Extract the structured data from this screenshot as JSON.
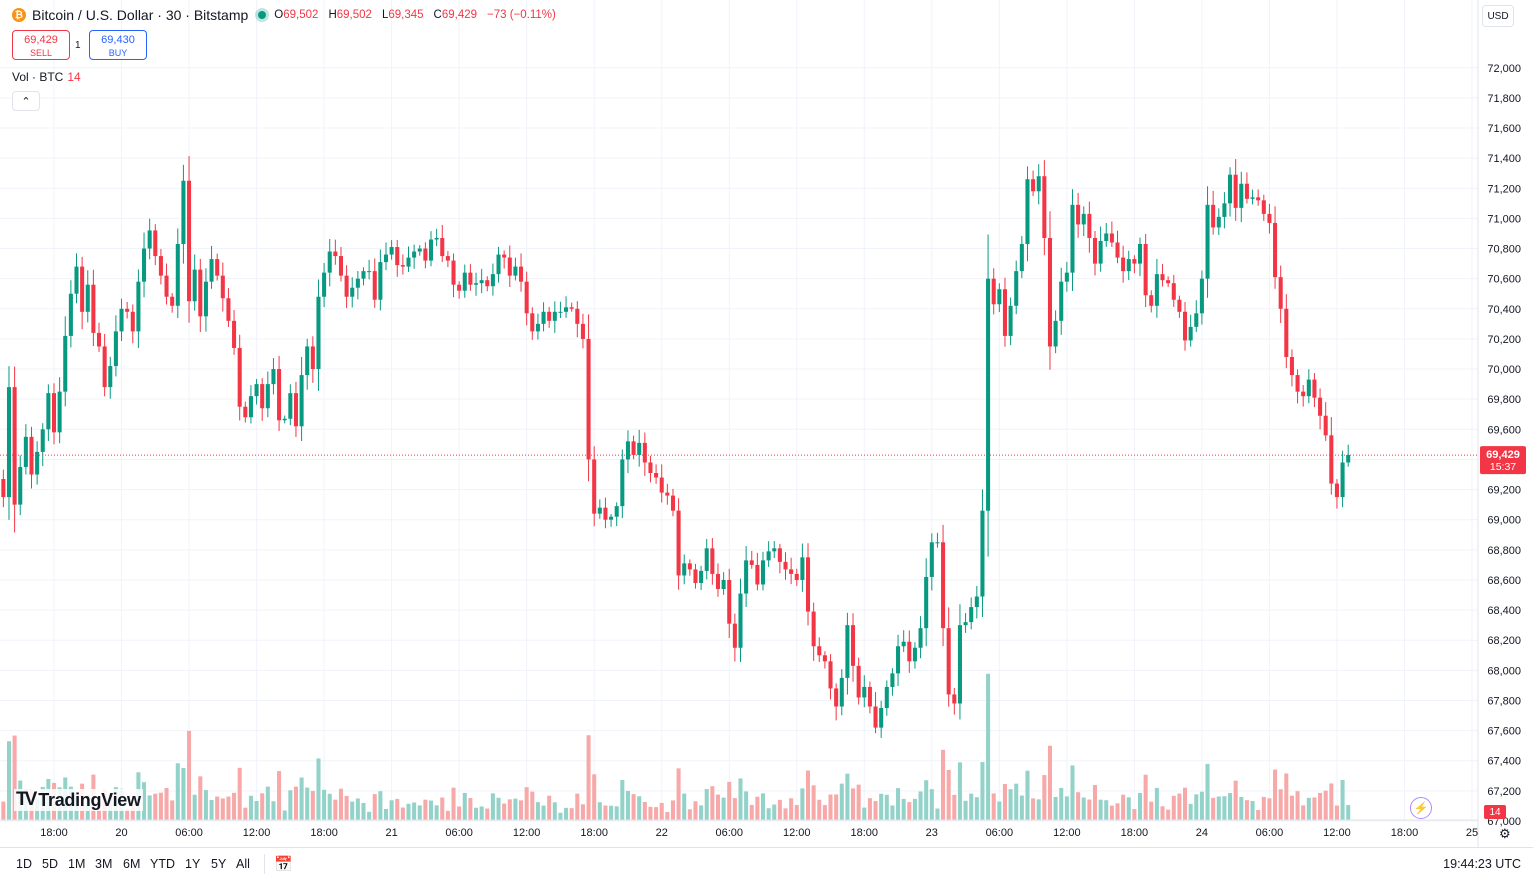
{
  "header": {
    "symbol_title": "Bitcoin / U.S. Dollar · 30 · Bitstamp",
    "o_label": "O",
    "o_value": "69,502",
    "h_label": "H",
    "h_value": "69,502",
    "l_label": "L",
    "l_value": "69,345",
    "c_label": "C",
    "c_value": "69,429",
    "change": "−73 (−0.11%)"
  },
  "trade": {
    "sell_price": "69,429",
    "sell_label": "SELL",
    "spread": "1",
    "buy_price": "69,430",
    "buy_label": "BUY"
  },
  "volume_legend": {
    "label": "Vol · BTC",
    "value": "14"
  },
  "collapse_glyph": "⌃",
  "currency": "USD",
  "logo_text": "TradingView",
  "logo_mark": "TV",
  "price_label": {
    "price": "69,429",
    "countdown": "15:37"
  },
  "volume_tag": "14",
  "timeframes": [
    "1D",
    "5D",
    "1M",
    "3M",
    "6M",
    "YTD",
    "1Y",
    "5Y",
    "All"
  ],
  "clock": "19:44:23 UTC",
  "colors": {
    "up": "#089981",
    "down": "#f23645",
    "up_vol": "#93d2c9",
    "down_vol": "#f7a9a9",
    "grid": "#f0f3fa"
  },
  "chart_data": {
    "type": "candlestick",
    "interval_minutes": 30,
    "y_ticks": [
      "67,000",
      "67,200",
      "67,400",
      "67,600",
      "67,800",
      "68,000",
      "68,200",
      "68,400",
      "68,600",
      "68,800",
      "69,000",
      "69,200",
      "69,400",
      "69,600",
      "69,800",
      "70,000",
      "70,200",
      "70,400",
      "70,600",
      "70,800",
      "71,000",
      "71,200",
      "71,400",
      "71,600",
      "71,800",
      "72,000"
    ],
    "ylim": [
      66980,
      72120
    ],
    "x_ticks": [
      "18:00",
      "20",
      "06:00",
      "12:00",
      "18:00",
      "21",
      "06:00",
      "12:00",
      "18:00",
      "22",
      "06:00",
      "12:00",
      "18:00",
      "23",
      "06:00",
      "12:00",
      "18:00",
      "24",
      "06:00",
      "12:00",
      "18:00",
      "25"
    ],
    "x_tick_times": [
      "2024-05-19 18:00",
      "2024-05-20 00:00",
      "2024-05-20 06:00",
      "2024-05-20 12:00",
      "2024-05-20 18:00",
      "2024-05-21 00:00",
      "2024-05-21 06:00",
      "2024-05-21 12:00",
      "2024-05-21 18:00",
      "2024-05-22 00:00",
      "2024-05-22 06:00",
      "2024-05-22 12:00",
      "2024-05-22 18:00",
      "2024-05-23 00:00",
      "2024-05-23 06:00",
      "2024-05-23 12:00",
      "2024-05-23 18:00",
      "2024-05-24 00:00",
      "2024-05-24 06:00",
      "2024-05-24 12:00",
      "2024-05-24 18:00",
      "2024-05-25 00:00"
    ],
    "first_bar_time": "2024-05-19 13:30",
    "last_price": 69429,
    "closes": [
      69150,
      69880,
      69100,
      69350,
      69550,
      69300,
      69450,
      69600,
      69840,
      69580,
      69850,
      70220,
      70500,
      70680,
      70380,
      70560,
      70240,
      70150,
      69880,
      70020,
      70250,
      70400,
      70380,
      70250,
      70580,
      70800,
      70920,
      70750,
      70620,
      70480,
      70420,
      70830,
      71250,
      70450,
      70660,
      70350,
      70580,
      70730,
      70620,
      70470,
      70320,
      70140,
      69750,
      69680,
      69820,
      69900,
      69740,
      69900,
      70000,
      69660,
      69670,
      69840,
      69620,
      69960,
      70150,
      70000,
      70480,
      70640,
      70780,
      70750,
      70620,
      70480,
      70540,
      70600,
      70650,
      70650,
      70460,
      70710,
      70760,
      70810,
      70690,
      70680,
      70740,
      70780,
      70800,
      70720,
      70860,
      70870,
      70750,
      70720,
      70560,
      70520,
      70640,
      70560,
      70570,
      70590,
      70550,
      70630,
      70760,
      70740,
      70620,
      70680,
      70580,
      70370,
      70250,
      70300,
      70380,
      70320,
      70380,
      70380,
      70410,
      70400,
      70300,
      70200,
      69400,
      69040,
      69080,
      69000,
      69020,
      69090,
      69400,
      69520,
      69430,
      69510,
      69380,
      69310,
      69280,
      69180,
      69160,
      69060,
      68630,
      68710,
      68670,
      68580,
      68660,
      68810,
      68640,
      68540,
      68600,
      68310,
      68150,
      68510,
      68730,
      68700,
      68570,
      68730,
      68790,
      68810,
      68720,
      68670,
      68640,
      68600,
      68750,
      68390,
      68160,
      68100,
      68060,
      67880,
      67760,
      67950,
      68300,
      68030,
      67820,
      67890,
      67760,
      67620,
      67750,
      67890,
      67980,
      68160,
      68190,
      68060,
      68150,
      68280,
      68620,
      68850,
      68850,
      68280,
      67840,
      67780,
      68300,
      68320,
      68420,
      68490,
      69060,
      70600,
      70430,
      70530,
      70220,
      70420,
      70650,
      70830,
      71260,
      71180,
      71280,
      70870,
      70150,
      70320,
      70580,
      70640,
      71090,
      70960,
      71030,
      70870,
      70700,
      70850,
      70900,
      70840,
      70740,
      70650,
      70730,
      70700,
      70830,
      70490,
      70420,
      70630,
      70590,
      70570,
      70460,
      70380,
      70190,
      70280,
      70370,
      70600,
      71090,
      70940,
      71010,
      71100,
      71290,
      71070,
      71230,
      71130,
      71140,
      71120,
      71030,
      70970,
      70610,
      70400,
      70080,
      69960,
      69850,
      69820,
      69930,
      69810,
      69690,
      69560,
      69240,
      69150,
      69380,
      69430
    ],
    "note_closes": "approximate closes read from the price axis; bar open = previous close",
    "volume_note": "volume bars at bottom in BTC"
  }
}
